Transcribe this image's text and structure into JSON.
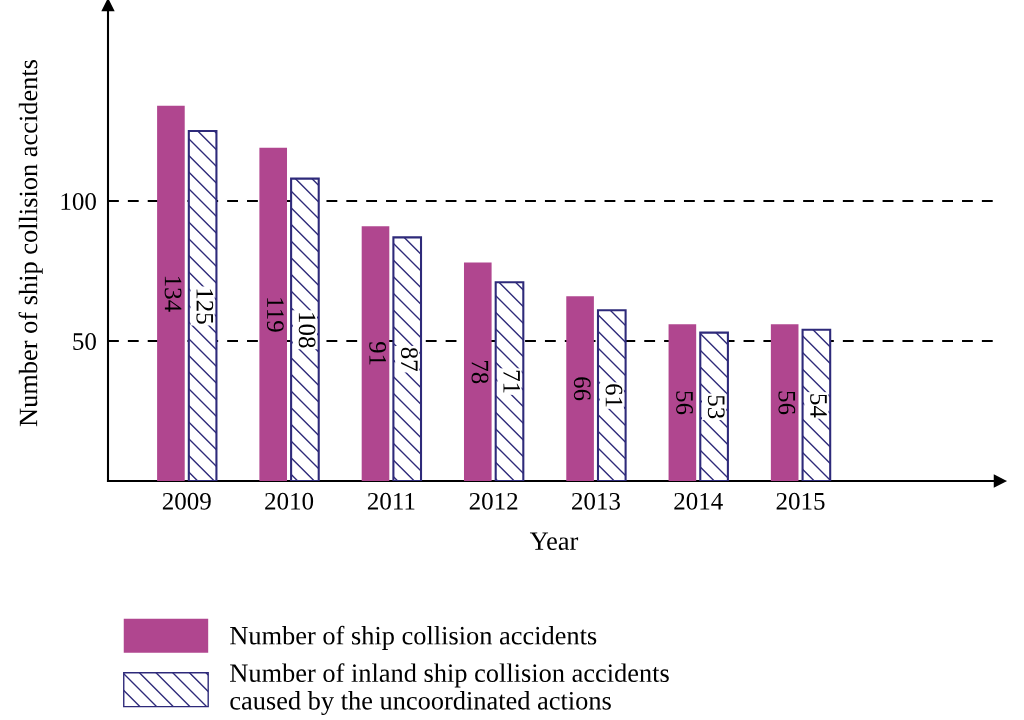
{
  "chart_data": {
    "type": "bar",
    "xlabel": "Year",
    "ylabel": "Number of ship collision accidents",
    "categories": [
      "2009",
      "2010",
      "2011",
      "2012",
      "2013",
      "2014",
      "2015"
    ],
    "series": [
      {
        "name": "Number of ship collision accidents",
        "color": "#b0468f",
        "values": [
          134,
          119,
          91,
          78,
          66,
          56,
          56
        ]
      },
      {
        "name": "Number of inland ship collision accidents\ncaused by the uncoordinated actions",
        "color": "#2e2a7a",
        "values": [
          125,
          108,
          87,
          71,
          61,
          53,
          54
        ]
      }
    ],
    "ylim": [
      0,
      170
    ],
    "yticks": [
      50,
      100
    ],
    "grid": "y",
    "data_labels": true,
    "legend": "bottom"
  }
}
